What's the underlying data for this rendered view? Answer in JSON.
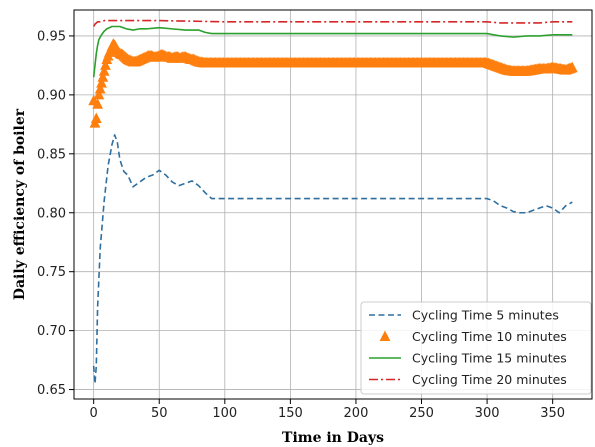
{
  "chart_data": {
    "type": "line",
    "xlabel": "Time in Days",
    "ylabel": "Daily efficiency of boiler",
    "xlim": [
      -15,
      380
    ],
    "ylim": [
      0.642,
      0.972
    ],
    "xticks": [
      0,
      50,
      100,
      150,
      200,
      250,
      300,
      350
    ],
    "yticks": [
      0.65,
      0.7,
      0.75,
      0.8,
      0.85,
      0.9,
      0.95
    ],
    "xtick_labels": [
      "0",
      "50",
      "100",
      "150",
      "200",
      "250",
      "300",
      "350"
    ],
    "ytick_labels": [
      "0.65",
      "0.70",
      "0.75",
      "0.80",
      "0.85",
      "0.90",
      "0.95"
    ],
    "grid": true,
    "legend_position": "lower-right",
    "series": [
      {
        "name": "Cycling Time 5 minutes",
        "color": "#2f6f9f",
        "style": "dashed",
        "x": [
          0,
          1,
          2,
          3,
          5,
          8,
          11,
          14,
          16,
          18,
          20,
          23,
          26,
          30,
          35,
          40,
          45,
          50,
          55,
          60,
          65,
          70,
          75,
          80,
          85,
          90,
          100,
          150,
          200,
          250,
          300,
          305,
          310,
          315,
          320,
          325,
          330,
          335,
          340,
          345,
          350,
          355,
          360,
          365
        ],
        "y": [
          0.67,
          0.655,
          0.67,
          0.72,
          0.77,
          0.81,
          0.84,
          0.858,
          0.866,
          0.86,
          0.845,
          0.835,
          0.832,
          0.822,
          0.826,
          0.83,
          0.832,
          0.836,
          0.832,
          0.826,
          0.823,
          0.825,
          0.827,
          0.823,
          0.817,
          0.812,
          0.812,
          0.812,
          0.812,
          0.812,
          0.812,
          0.81,
          0.806,
          0.804,
          0.801,
          0.8,
          0.8,
          0.802,
          0.804,
          0.806,
          0.804,
          0.8,
          0.806,
          0.809
        ]
      },
      {
        "name": "Cycling Time 10 minutes",
        "color": "#ff7f0e",
        "style": "triangle-markers",
        "x": [
          0,
          1,
          2,
          3,
          4,
          5,
          6,
          7,
          8,
          9,
          10,
          11,
          12,
          13,
          14,
          15,
          16,
          17,
          18,
          19,
          20,
          22,
          24,
          26,
          28,
          30,
          32,
          34,
          36,
          38,
          40,
          42,
          44,
          46,
          48,
          50,
          52,
          54,
          56,
          58,
          60,
          62,
          64,
          66,
          68,
          70,
          72,
          74,
          76,
          78,
          80,
          85,
          90,
          100,
          150,
          200,
          250,
          300,
          305,
          310,
          315,
          320,
          325,
          330,
          335,
          340,
          345,
          350,
          355,
          360,
          365
        ],
        "y": [
          0.895,
          0.876,
          0.88,
          0.892,
          0.9,
          0.905,
          0.91,
          0.915,
          0.92,
          0.925,
          0.93,
          0.933,
          0.936,
          0.938,
          0.941,
          0.943,
          0.942,
          0.94,
          0.938,
          0.936,
          0.935,
          0.934,
          0.932,
          0.93,
          0.929,
          0.928,
          0.928,
          0.929,
          0.93,
          0.931,
          0.932,
          0.933,
          0.933,
          0.932,
          0.932,
          0.933,
          0.934,
          0.933,
          0.932,
          0.932,
          0.931,
          0.932,
          0.932,
          0.931,
          0.932,
          0.932,
          0.931,
          0.93,
          0.93,
          0.929,
          0.928,
          0.927,
          0.927,
          0.927,
          0.927,
          0.927,
          0.927,
          0.927,
          0.925,
          0.923,
          0.921,
          0.92,
          0.92,
          0.92,
          0.921,
          0.922,
          0.922,
          0.923,
          0.922,
          0.921,
          0.923
        ]
      },
      {
        "name": "Cycling Time 15 minutes",
        "color": "#2ca02c",
        "style": "solid",
        "x": [
          0,
          1,
          2,
          3,
          4,
          6,
          8,
          10,
          14,
          20,
          25,
          30,
          35,
          40,
          50,
          60,
          70,
          80,
          85,
          90,
          150,
          200,
          250,
          300,
          305,
          310,
          320,
          330,
          340,
          350,
          365
        ],
        "y": [
          0.915,
          0.925,
          0.935,
          0.942,
          0.947,
          0.951,
          0.954,
          0.956,
          0.958,
          0.958,
          0.956,
          0.955,
          0.956,
          0.956,
          0.957,
          0.956,
          0.955,
          0.955,
          0.953,
          0.952,
          0.952,
          0.952,
          0.952,
          0.952,
          0.951,
          0.95,
          0.949,
          0.95,
          0.95,
          0.951,
          0.951
        ]
      },
      {
        "name": "Cycling Time 20 minutes",
        "color": "#d62728",
        "style": "dashdot",
        "x": [
          0,
          1,
          2,
          3,
          5,
          8,
          12,
          20,
          50,
          100,
          150,
          200,
          250,
          300,
          310,
          320,
          330,
          340,
          350,
          365
        ],
        "y": [
          0.958,
          0.96,
          0.961,
          0.962,
          0.962,
          0.963,
          0.963,
          0.963,
          0.963,
          0.962,
          0.962,
          0.962,
          0.962,
          0.962,
          0.961,
          0.961,
          0.961,
          0.961,
          0.962,
          0.962
        ]
      }
    ]
  }
}
